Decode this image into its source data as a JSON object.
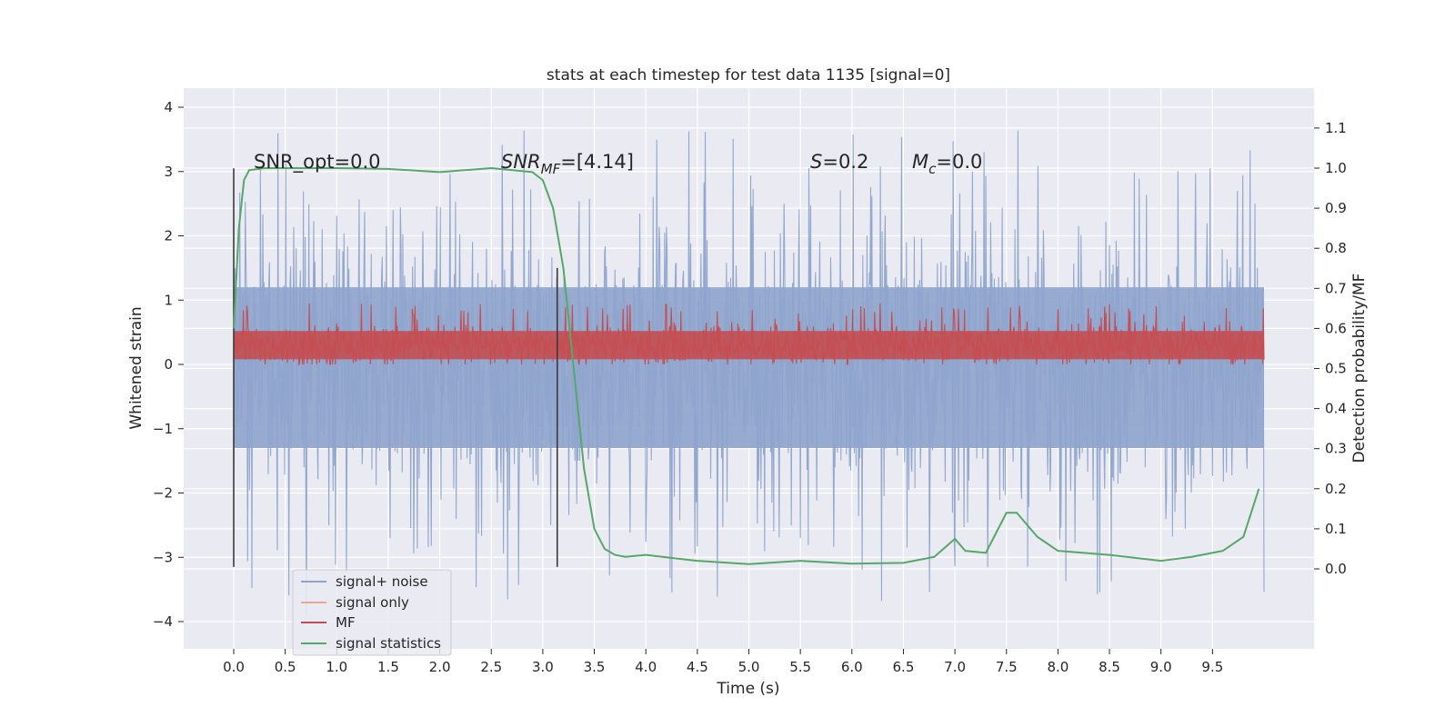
{
  "chart_data": {
    "type": "line",
    "title": "stats at each timestep for test data 1135 [signal=0]",
    "xlabel": "Time (s)",
    "ylabel_left": "Whitened strain",
    "ylabel_right": "Detection probability/MF",
    "xlim": [
      -0.5,
      10.5
    ],
    "ylim_left": [
      -4.4,
      4.3
    ],
    "ylim_right": [
      -0.2,
      1.2
    ],
    "x_ticks": [
      0.0,
      0.5,
      1.0,
      1.5,
      2.0,
      2.5,
      3.0,
      3.5,
      4.0,
      4.5,
      5.0,
      5.5,
      6.0,
      6.5,
      7.0,
      7.5,
      8.0,
      8.5,
      9.0,
      9.5
    ],
    "x_tick_labels": [
      "0.0",
      "0.5",
      "1.0",
      "1.5",
      "2.0",
      "2.5",
      "3.0",
      "3.5",
      "4.0",
      "4.5",
      "5.0",
      "5.5",
      "6.0",
      "6.5",
      "7.0",
      "7.5",
      "8.0",
      "8.5",
      "9.0",
      "9.5"
    ],
    "y_left_ticks": [
      -4,
      -3,
      -2,
      -1,
      0,
      1,
      2,
      3,
      4
    ],
    "y_left_tick_labels": [
      "−4",
      "−3",
      "−2",
      "−1",
      "0",
      "1",
      "2",
      "3",
      "4"
    ],
    "y_right_ticks": [
      0.0,
      0.1,
      0.2,
      0.3,
      0.4,
      0.5,
      0.6,
      0.7,
      0.8,
      0.9,
      1.0,
      1.1
    ],
    "y_right_tick_labels": [
      "0.0",
      "0.1",
      "0.2",
      "0.3",
      "0.4",
      "0.5",
      "0.6",
      "0.7",
      "0.8",
      "0.9",
      "1.0",
      "1.1"
    ],
    "grid": true,
    "legend_position": "lower-left",
    "annotations": {
      "snr_opt": "SNR_opt=0.0",
      "snr_mf_sym": "SNR",
      "snr_mf_sub": "MF",
      "snr_mf_val": "=[4.14]",
      "s_sym": "S",
      "s_val": "=0.2",
      "mc_sym": "M",
      "mc_sub": "c",
      "mc_val": "=0.0"
    },
    "vertical_markers": [
      {
        "x": 0.0,
        "y_range": [
          -3.15,
          3.05
        ]
      },
      {
        "x": 3.14,
        "y_range": [
          -3.15,
          1.5
        ]
      }
    ],
    "series": [
      {
        "name": "signal+ noise",
        "axis": "left",
        "color": "#8ea4cc",
        "kind": "noise",
        "x_range": [
          0.0,
          10.0
        ],
        "core_range": [
          -1.3,
          1.2
        ],
        "envelope": [
          -3.2,
          3.6
        ],
        "extremes": [
          -4.0,
          3.9
        ]
      },
      {
        "name": "signal only",
        "axis": "left",
        "color": "#e8a98f",
        "values": []
      },
      {
        "name": "MF",
        "axis": "left",
        "color": "#c44e52",
        "kind": "noise",
        "x_range": [
          0.0,
          10.0
        ],
        "core_range": [
          0.05,
          0.6
        ],
        "extremes": [
          0.0,
          1.0
        ]
      },
      {
        "name": "signal statistics",
        "axis": "right",
        "color": "#55a868",
        "x": [
          0.0,
          0.05,
          0.1,
          0.15,
          0.3,
          0.5,
          1.0,
          1.5,
          2.0,
          2.5,
          2.9,
          3.0,
          3.1,
          3.2,
          3.3,
          3.4,
          3.5,
          3.6,
          3.7,
          3.8,
          4.0,
          4.5,
          5.0,
          5.5,
          6.0,
          6.5,
          6.8,
          7.0,
          7.1,
          7.3,
          7.5,
          7.6,
          7.8,
          8.0,
          8.5,
          9.0,
          9.3,
          9.6,
          9.8,
          9.95
        ],
        "values": [
          0.6,
          0.85,
          0.97,
          0.995,
          1.0,
          1.0,
          1.0,
          0.998,
          0.99,
          1.0,
          0.99,
          0.97,
          0.9,
          0.75,
          0.5,
          0.25,
          0.1,
          0.05,
          0.035,
          0.03,
          0.035,
          0.02,
          0.012,
          0.02,
          0.013,
          0.015,
          0.03,
          0.075,
          0.045,
          0.04,
          0.14,
          0.14,
          0.08,
          0.045,
          0.035,
          0.02,
          0.03,
          0.045,
          0.08,
          0.2
        ]
      }
    ]
  }
}
